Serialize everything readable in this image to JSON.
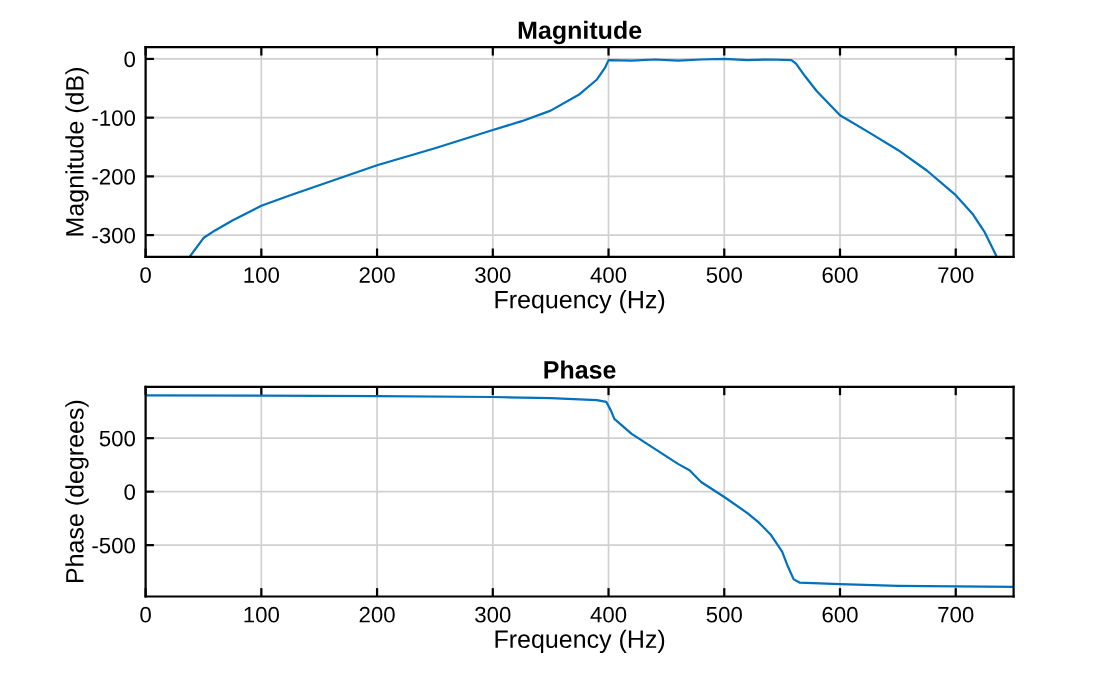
{
  "chart_data": [
    {
      "type": "line",
      "title": "Magnitude",
      "xlabel": "Frequency (Hz)",
      "ylabel": "Magnitude (dB)",
      "xlim": [
        0,
        750
      ],
      "xticks": [
        0,
        100,
        200,
        300,
        400,
        500,
        600,
        700
      ],
      "ylim": [
        -337,
        20
      ],
      "yticks": [
        -300,
        -200,
        -100,
        0
      ],
      "grid": true,
      "series": [
        {
          "color": "#0072bd",
          "x": [
            38,
            50,
            60,
            75,
            100,
            125,
            150,
            200,
            250,
            300,
            325,
            350,
            375,
            390,
            397,
            400,
            420,
            440,
            460,
            480,
            500,
            520,
            540,
            558,
            562,
            570,
            580,
            600,
            625,
            650,
            675,
            700,
            715,
            725,
            735
          ],
          "values": [
            -337,
            -305,
            -292,
            -275,
            -250,
            -232,
            -215,
            -181,
            -152,
            -121,
            -106,
            -88,
            -60,
            -35,
            -15,
            -2,
            -3,
            -1,
            -3,
            -1,
            0,
            -2,
            -1,
            -2,
            -8,
            -30,
            -55,
            -96,
            -125,
            -155,
            -190,
            -232,
            -265,
            -295,
            -335
          ]
        }
      ]
    },
    {
      "type": "line",
      "title": "Phase",
      "xlabel": "Frequency (Hz)",
      "ylabel": "Phase (degrees)",
      "xlim": [
        0,
        750
      ],
      "xticks": [
        0,
        100,
        200,
        300,
        400,
        500,
        600,
        700
      ],
      "ylim": [
        -980,
        980
      ],
      "yticks": [
        -500,
        0,
        500
      ],
      "grid": true,
      "series": [
        {
          "color": "#0072bd",
          "x": [
            0,
            100,
            200,
            300,
            350,
            390,
            398,
            402,
            405,
            420,
            440,
            460,
            470,
            480,
            500,
            520,
            530,
            540,
            550,
            555,
            560,
            565,
            600,
            650,
            700,
            750
          ],
          "values": [
            900,
            898,
            893,
            885,
            875,
            855,
            840,
            760,
            680,
            540,
            400,
            260,
            200,
            90,
            -50,
            -200,
            -290,
            -400,
            -560,
            -700,
            -820,
            -850,
            -865,
            -880,
            -885,
            -890
          ]
        }
      ]
    }
  ]
}
